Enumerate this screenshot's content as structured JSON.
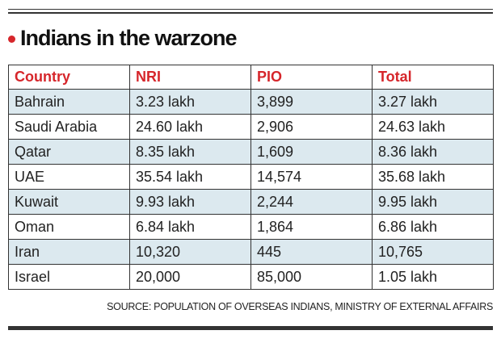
{
  "title": "Indians in the warzone",
  "table": {
    "header": [
      "Country",
      "NRI",
      "PIO",
      "Total"
    ],
    "rows": [
      [
        "Bahrain",
        "3.23 lakh",
        "3,899",
        "3.27 lakh"
      ],
      [
        "Saudi Arabia",
        "24.60 lakh",
        "2,906",
        "24.63 lakh"
      ],
      [
        "Qatar",
        "8.35 lakh",
        "1,609",
        "8.36 lakh"
      ],
      [
        "UAE",
        "35.54 lakh",
        "14,574",
        "35.68 lakh"
      ],
      [
        "Kuwait",
        "9.93 lakh",
        "2,244",
        "9.95 lakh"
      ],
      [
        "Oman",
        "6.84 lakh",
        "1,864",
        "6.86 lakh"
      ],
      [
        "Iran",
        "10,320",
        "445",
        "10,765"
      ],
      [
        "Israel",
        "20,000",
        "85,000",
        "1.05 lakh"
      ]
    ]
  },
  "source": "SOURCE: POPULATION OF OVERSEAS INDIANS, MINISTRY OF EXTERNAL AFFAIRS"
}
